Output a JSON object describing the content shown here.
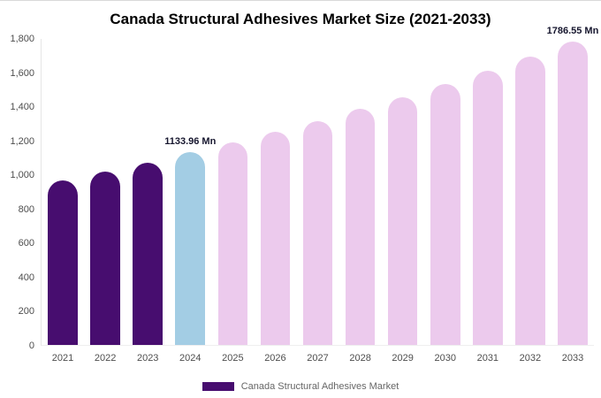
{
  "legend": {
    "label": "Canada Structural Adhesives Market"
  },
  "colors": {
    "historical_bar": "#470d6f",
    "highlight_bar": "#a3cde4",
    "forecast_bar": "#eccaed",
    "legend_swatch": "#470d6f",
    "axis_text": "#4d4d4d",
    "annotation_text": "#16162e"
  },
  "chart_data": {
    "type": "bar",
    "title": "Canada Structural Adhesives Market Size (2021-2033)",
    "unit": "Mn",
    "categories": [
      "2021",
      "2022",
      "2023",
      "2024",
      "2025",
      "2026",
      "2027",
      "2028",
      "2029",
      "2030",
      "2031",
      "2032",
      "2033"
    ],
    "values": [
      970,
      1022,
      1074,
      1133.96,
      1192,
      1254,
      1318,
      1387,
      1459,
      1535,
      1614,
      1698,
      1786.55
    ],
    "bar_colors": [
      "#470d6f",
      "#470d6f",
      "#470d6f",
      "#a3cde4",
      "#eccaed",
      "#eccaed",
      "#eccaed",
      "#eccaed",
      "#eccaed",
      "#eccaed",
      "#eccaed",
      "#eccaed",
      "#eccaed"
    ],
    "annotations": [
      {
        "category": "2024",
        "text": "1133.96 Mn"
      },
      {
        "category": "2033",
        "text": "1786.55 Mn"
      }
    ],
    "xlabel": "",
    "ylabel": "",
    "ylim": [
      0,
      1800
    ],
    "yticks": [
      "0",
      "200",
      "400",
      "600",
      "800",
      "1,000",
      "1,200",
      "1,400",
      "1,600",
      "1,800"
    ],
    "grid": false,
    "legend_position": "bottom"
  }
}
